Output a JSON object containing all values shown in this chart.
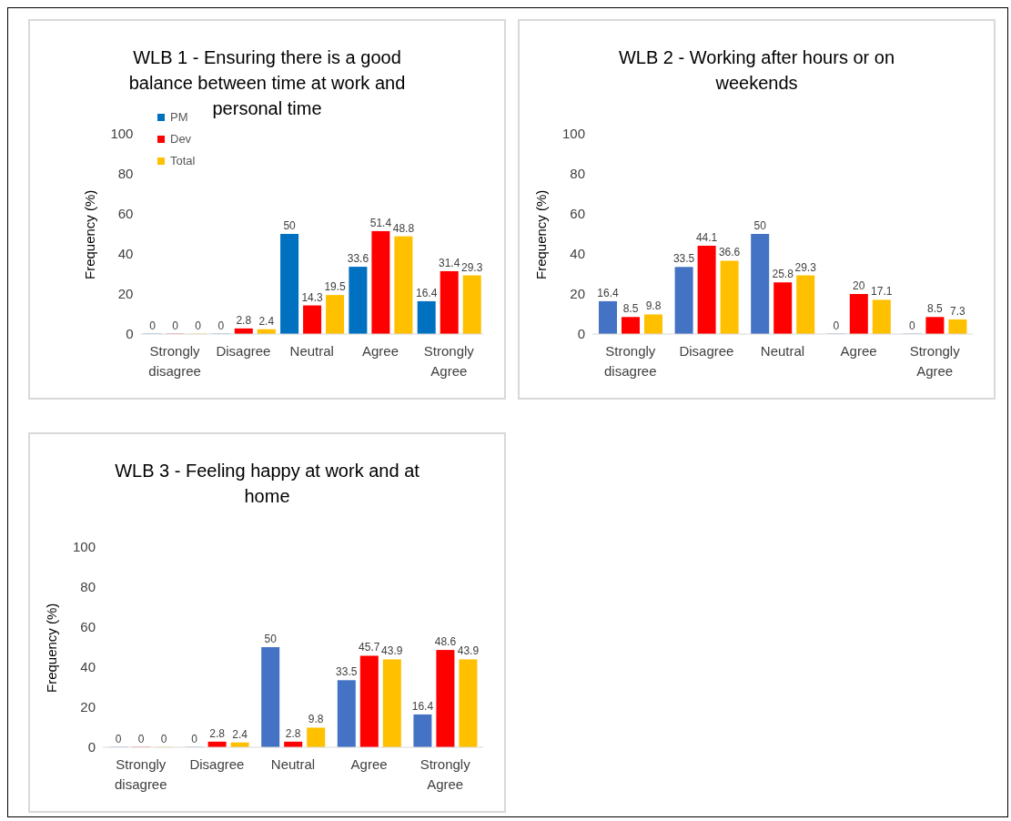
{
  "chart_data": [
    {
      "type": "bar",
      "title": "WLB 1 - Ensuring there is a good balance between time at work and personal time",
      "ylabel": "Frequency (%)",
      "categories": [
        "Strongly disagree",
        "Disagree",
        "Neutral",
        "Agree",
        "Strongly Agree"
      ],
      "series": [
        {
          "name": "PM",
          "color": "#0070c0",
          "values": [
            0,
            0,
            50,
            33.6,
            16.4
          ]
        },
        {
          "name": "Dev",
          "color": "#ff0000",
          "values": [
            0,
            2.8,
            14.3,
            51.4,
            31.4
          ]
        },
        {
          "name": "Total",
          "color": "#ffc000",
          "values": [
            0,
            2.4,
            19.5,
            48.8,
            29.3
          ]
        }
      ],
      "ylim": [
        0,
        100
      ],
      "yticks": [
        0,
        20,
        40,
        60,
        80,
        100
      ],
      "grid": false,
      "legend": "top left",
      "data_labels": true
    },
    {
      "type": "bar",
      "title": "WLB 2 - Working after hours or on weekends",
      "ylabel": "Frequency (%)",
      "categories": [
        "Strongly disagree",
        "Disagree",
        "Neutral",
        "Agree",
        "Strongly Agree"
      ],
      "series": [
        {
          "color": "#4472c4",
          "values": [
            16.4,
            33.5,
            50,
            0,
            0
          ]
        },
        {
          "color": "#ff0000",
          "values": [
            8.5,
            44.1,
            25.8,
            20,
            8.5
          ]
        },
        {
          "color": "#ffc000",
          "values": [
            9.8,
            36.6,
            29.3,
            17.1,
            7.3
          ]
        }
      ],
      "ylim": [
        0,
        100
      ],
      "yticks": [
        0,
        20,
        40,
        60,
        80,
        100
      ],
      "grid": false,
      "legend": false,
      "data_labels": true
    },
    {
      "type": "bar",
      "title": "WLB 3 - Feeling happy at work and at home",
      "ylabel": "Frequency (%)",
      "categories": [
        "Strongly disagree",
        "Disagree",
        "Neutral",
        "Agree",
        "Strongly Agree"
      ],
      "series": [
        {
          "color": "#4472c4",
          "values": [
            0,
            0,
            50,
            33.5,
            16.4
          ]
        },
        {
          "color": "#ff0000",
          "values": [
            0,
            2.8,
            2.8,
            45.7,
            48.6
          ]
        },
        {
          "color": "#ffc000",
          "values": [
            0,
            2.4,
            9.8,
            43.9,
            43.9
          ]
        }
      ],
      "ylim": [
        0,
        100
      ],
      "yticks": [
        0,
        20,
        40,
        60,
        80,
        100
      ],
      "grid": false,
      "legend": false,
      "data_labels": true
    }
  ]
}
